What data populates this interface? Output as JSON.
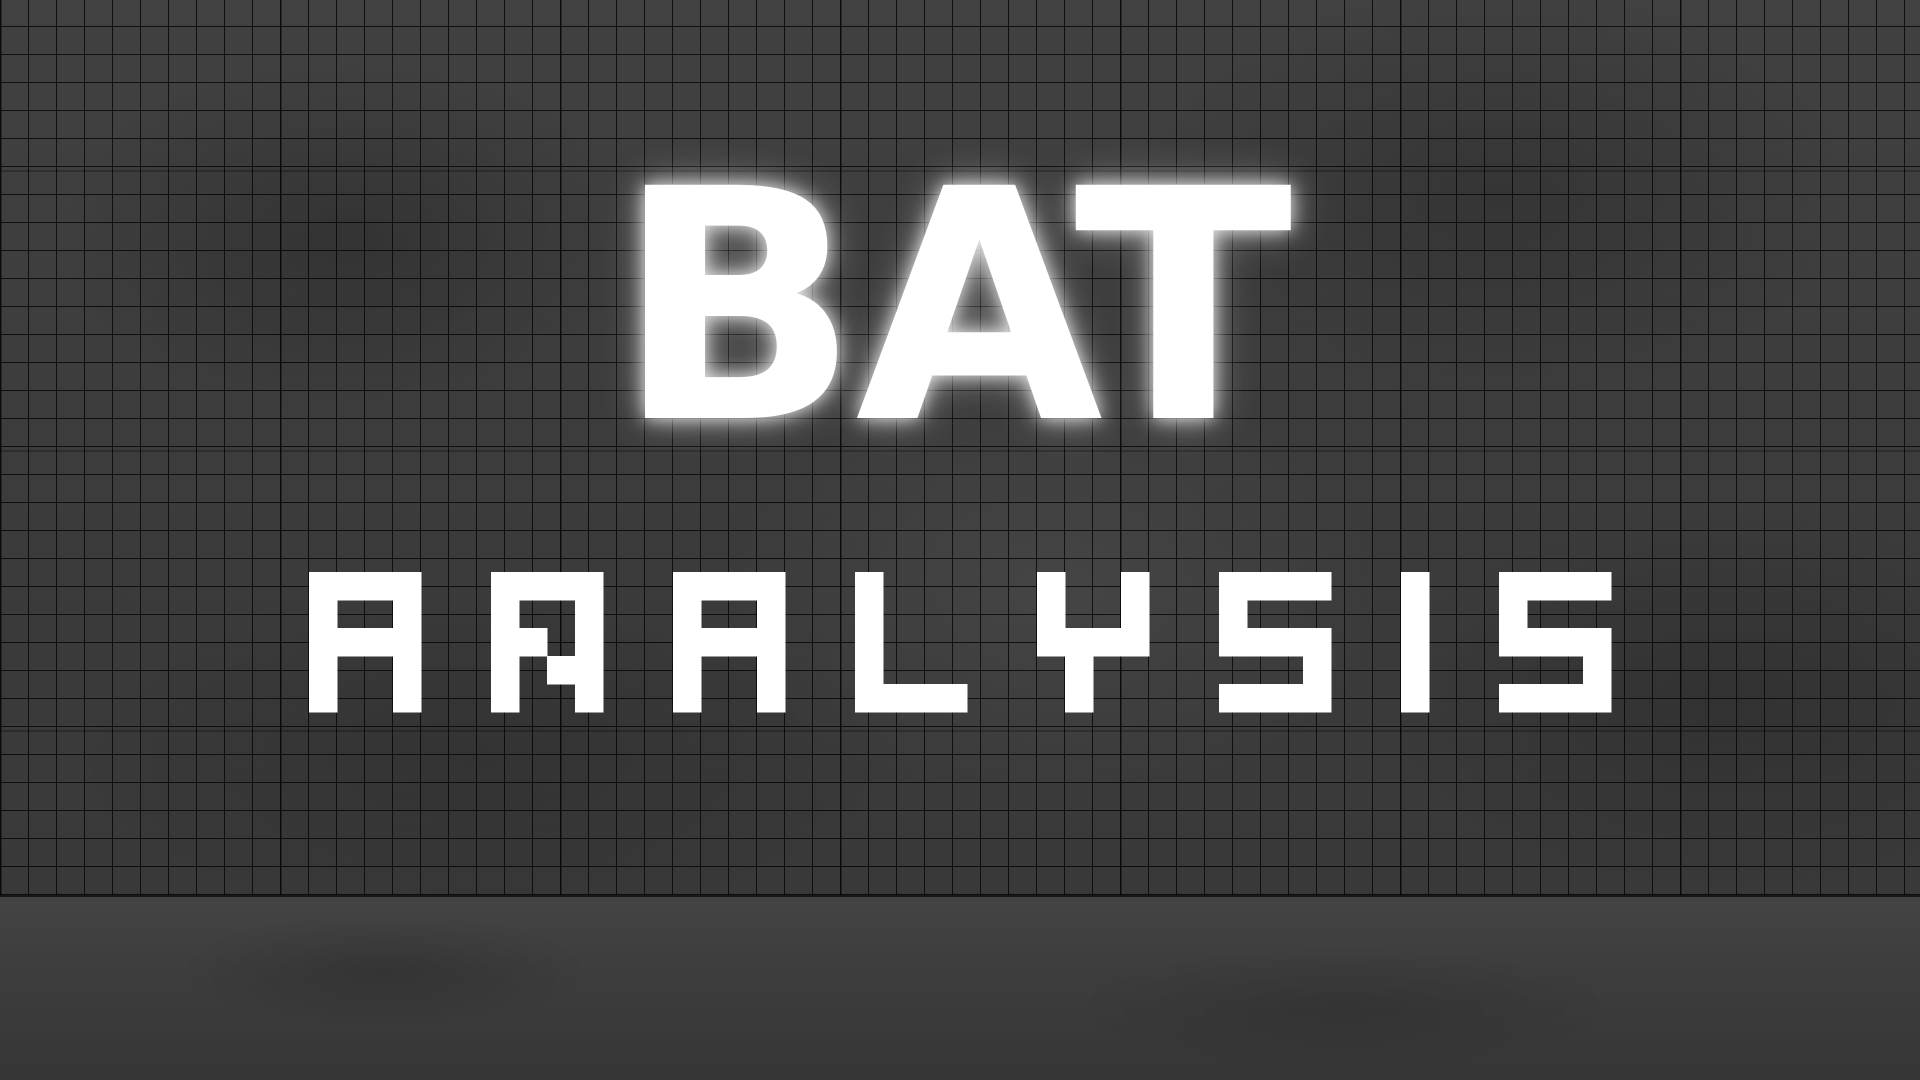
{
  "title": {
    "main": "BAT",
    "sub": "ANALYSIS"
  },
  "colors": {
    "background": "#3a3a3a",
    "grid_line": "#000000",
    "text": "#ffffff"
  }
}
